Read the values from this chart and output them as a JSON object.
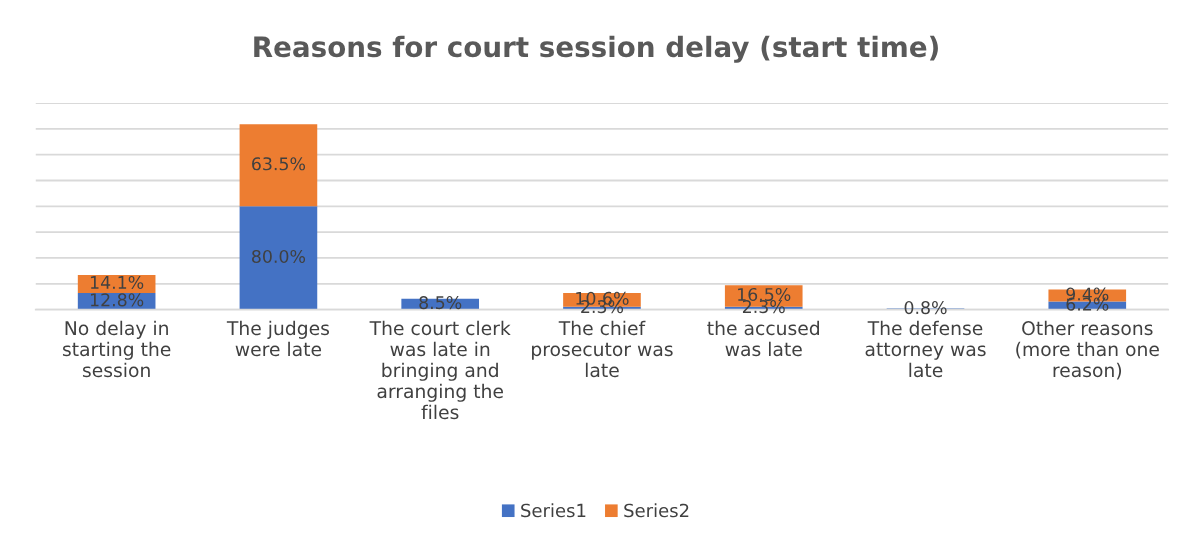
{
  "chart_data": {
    "type": "bar",
    "title": "Reasons for court session delay (start time)",
    "categories": [
      "No delay in\nstarting the\nsession",
      "The judges\nwere late",
      "The court clerk\nwas late in\nbringing and\narranging the\nfiles",
      "The chief\nprosecutor was\nlate",
      "the accused\nwas late",
      "The defense\nattorney was\nlate",
      "Other reasons\n(more than one\nreason)"
    ],
    "series": [
      {
        "name": "Series1",
        "color": "#4472c4",
        "values": [
          12.8,
          80.0,
          8.5,
          2.3,
          2.3,
          0.8,
          6.2
        ],
        "value_labels": [
          "12.8%",
          "80.0%",
          "8.5%",
          "2.3%",
          "2.3%",
          "0.8%",
          "6.2%"
        ]
      },
      {
        "name": "Series2",
        "color": "#ed7d31",
        "values": [
          14.1,
          63.5,
          null,
          10.6,
          16.5,
          null,
          9.4
        ],
        "value_labels": [
          "14.1%",
          "63.5%",
          null,
          "10.6%",
          "16.5%",
          null,
          "9.4%"
        ]
      }
    ],
    "stacked": true,
    "ylim": [
      0,
      160
    ],
    "yticks": [
      {
        "value": 0,
        "label": null
      },
      {
        "value": 20,
        "label": null
      },
      {
        "value": 40,
        "label": null
      },
      {
        "value": 60,
        "label": null
      },
      {
        "value": 80,
        "label": null
      },
      {
        "value": 100,
        "label": null
      },
      {
        "value": 120,
        "label": null
      },
      {
        "value": 140,
        "label": null
      },
      {
        "value": 160,
        "label": null
      }
    ],
    "tick_labels": "x",
    "grid": "y",
    "legend": "bottom"
  }
}
